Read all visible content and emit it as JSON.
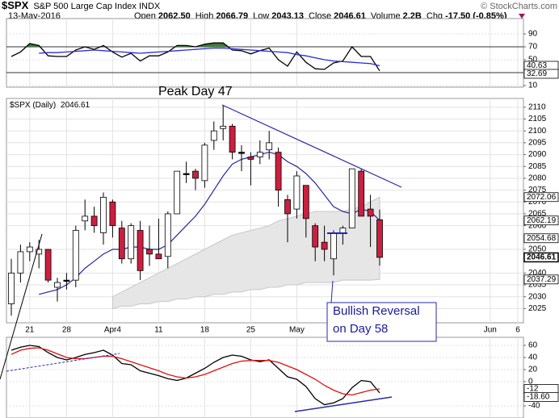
{
  "header": {
    "symbol": "$SPX",
    "name": "S&P 500 Large Cap Index INDX",
    "source": "© StockCharts.com",
    "date": "13-May-2016",
    "stats": [
      {
        "label": "Open",
        "value": "2062.50"
      },
      {
        "label": "High",
        "value": "2066.79"
      },
      {
        "label": "Low",
        "value": "2043.13"
      },
      {
        "label": "Close",
        "value": "2046.61"
      },
      {
        "label": "Volume",
        "value": "2.2B"
      },
      {
        "label": "Chg",
        "value": "-17.50 (-0.85%)"
      }
    ]
  },
  "chart_data": [
    {
      "type": "candlestick",
      "title": "$SPX (Daily)",
      "categories": [
        null,
        null,
        "21",
        null,
        null,
        null,
        "28",
        null,
        null,
        null,
        null,
        "Apr4",
        null,
        null,
        null,
        null,
        "11",
        null,
        null,
        null,
        null,
        "18",
        null,
        null,
        null,
        null,
        "25",
        null,
        null,
        null,
        null,
        "May",
        null,
        null,
        null,
        null,
        null,
        null,
        null,
        null,
        null,
        null,
        null,
        null,
        null,
        null,
        null,
        null,
        null,
        null,
        null,
        null,
        "Jun",
        null,
        null,
        "6"
      ],
      "open": [
        2027,
        2040,
        2049,
        2048,
        2050,
        2034,
        2037,
        2037,
        2062,
        2064,
        2057,
        2070,
        2059,
        2046,
        2058,
        2050,
        2048,
        2047,
        2065,
        2082,
        2083,
        2079,
        2096,
        2101,
        2102,
        2091,
        2089,
        2089,
        2092,
        2091,
        2071,
        2067,
        2077,
        2060,
        2053,
        2046,
        2057,
        2059,
        2083,
        2067,
        2062.5,
        null,
        null,
        null,
        null,
        null,
        null,
        null,
        null,
        null,
        null,
        null,
        null,
        null,
        null,
        null
      ],
      "high": [
        2046,
        2052,
        2053,
        2054,
        2050,
        2038,
        2040,
        2060,
        2071,
        2068,
        2074,
        2071,
        2062,
        2061,
        2062,
        2060,
        2063,
        2066,
        2083,
        2087,
        2084,
        2095,
        2104,
        2111,
        2103,
        2094,
        2091,
        2096,
        2100,
        2093,
        2073,
        2083,
        2077,
        2061,
        2060,
        2058,
        2060,
        2084,
        2084,
        2073,
        2066.79,
        null,
        null,
        null,
        null,
        null,
        null,
        null,
        null,
        null,
        null,
        null,
        null,
        null,
        null,
        null
      ],
      "low": [
        2022,
        2036,
        2045,
        2042,
        2036,
        2028,
        2033,
        2034,
        2058,
        2057,
        2052,
        2055,
        2044,
        2044,
        2037,
        2043,
        2046,
        2042,
        2065,
        2078,
        2075,
        2076,
        2092,
        2096,
        2088,
        2083,
        2077,
        2086,
        2088,
        2068,
        2053,
        2063,
        2055,
        2045,
        2045,
        2039,
        2052,
        2059,
        2064,
        2051,
        2043.13,
        null,
        null,
        null,
        null,
        null,
        null,
        null,
        null,
        null,
        null,
        null,
        null,
        null,
        null,
        null
      ],
      "close": [
        2040,
        2049,
        2051,
        2050,
        2037,
        2036,
        2037,
        2058,
        2064,
        2060,
        2072,
        2060,
        2046,
        2060,
        2041,
        2048,
        2046,
        2065,
        2083,
        2082,
        2080,
        2094,
        2100,
        2102,
        2091,
        2091,
        2088,
        2091,
        2095,
        2075,
        2065,
        2081,
        2063,
        2051,
        2050,
        2057,
        2059,
        2084,
        2064,
        2064,
        2046.61,
        null,
        null,
        null,
        null,
        null,
        null,
        null,
        null,
        null,
        null,
        null,
        null,
        null,
        null,
        null
      ],
      "up_color": "#ffffff",
      "down_color": "#cc1f3f",
      "ma": {
        "color": "#27279c",
        "values": [
          null,
          null,
          null,
          2031,
          2032,
          2033,
          2035,
          2038,
          2042,
          2045,
          2048,
          2050,
          2050,
          2051,
          2051,
          2050,
          2050,
          2052,
          2056,
          2060,
          2064,
          2069,
          2075,
          2081,
          2086,
          2088,
          2089,
          2090,
          2091,
          2090,
          2087,
          2085,
          2082,
          2078,
          2073,
          2068,
          2066,
          2065,
          2067,
          2066,
          2062.19,
          null,
          null,
          null,
          null,
          null,
          null,
          null,
          null,
          null,
          null,
          null,
          null,
          null,
          null,
          null
        ]
      },
      "band": {
        "color": "#e6e6e6",
        "upper": [
          null,
          null,
          null,
          null,
          null,
          null,
          null,
          null,
          null,
          null,
          null,
          2030,
          2032,
          2034,
          2036,
          2038,
          2040,
          2042,
          2044,
          2046,
          2048,
          2050,
          2052,
          2054,
          2056,
          2057,
          2058,
          2059,
          2060,
          2062,
          2063,
          2064,
          2065,
          2066,
          2066,
          2066,
          2066,
          2067,
          2068,
          2070,
          2072.06,
          null,
          null,
          null,
          null,
          null,
          null,
          null,
          null,
          null,
          null,
          null,
          null,
          null,
          null,
          null
        ],
        "lower": [
          null,
          null,
          null,
          null,
          null,
          null,
          null,
          null,
          null,
          null,
          null,
          2025,
          2026,
          2026,
          2027,
          2027,
          2028,
          2028,
          2029,
          2029,
          2030,
          2030,
          2031,
          2031,
          2032,
          2032,
          2033,
          2033,
          2034,
          2034,
          2035,
          2035,
          2036,
          2036,
          2036,
          2036,
          2037,
          2037,
          2037,
          2037,
          2037.29,
          null,
          null,
          null,
          null,
          null,
          null,
          null,
          null,
          null,
          null,
          null,
          null,
          null,
          null,
          null
        ]
      },
      "price_labels": [
        2054.68
      ],
      "ylim": [
        2019,
        2113.7
      ],
      "yticks": [
        2025,
        2030,
        2035,
        2040,
        2050,
        2060,
        2065,
        2070,
        2075,
        2080,
        2085,
        2090,
        2095,
        2100,
        2105,
        2110
      ],
      "grid": true,
      "annotations": [
        "Peak Day 47",
        "Bullish Reversal",
        "on Day 58"
      ]
    },
    {
      "type": "line",
      "ylim": [
        7.5,
        113.75
      ],
      "yticks": [
        10,
        50,
        70,
        90
      ],
      "hlines": [
        70,
        30
      ],
      "overbought_color": "#3f7a3f",
      "grid": true,
      "series": [
        {
          "color": "#000000",
          "values": [
            55,
            62,
            75,
            72,
            56,
            55,
            55,
            65,
            70,
            66,
            72,
            62,
            54,
            60,
            48,
            56,
            56,
            62,
            72,
            72,
            70,
            74,
            76,
            76,
            65,
            64,
            59,
            64,
            68,
            50,
            40,
            62,
            46,
            36,
            35,
            45,
            48,
            70,
            55,
            55,
            32.69
          ]
        },
        {
          "color": "#2b2bd6",
          "values": [
            null,
            null,
            null,
            60,
            61,
            61,
            62,
            63,
            64,
            65,
            64,
            63,
            62,
            61,
            60,
            61,
            62,
            63,
            64,
            65,
            66,
            67,
            68,
            68,
            67,
            66,
            65,
            64,
            63,
            62,
            61,
            58,
            56,
            53,
            50,
            48,
            47,
            46,
            45,
            44,
            40.63
          ]
        }
      ]
    },
    {
      "type": "line",
      "ylim": [
        -60,
        73.3
      ],
      "yticks": [
        -40,
        0,
        20,
        40,
        60
      ],
      "grid": true,
      "series": [
        {
          "color": "#000000",
          "values": [
            52,
            57,
            60,
            58,
            48,
            40,
            36,
            40,
            45,
            48,
            52,
            44,
            30,
            28,
            18,
            14,
            10,
            5,
            2,
            6,
            14,
            22,
            32,
            40,
            44,
            42,
            36,
            33,
            36,
            22,
            8,
            4,
            -8,
            -28,
            -38,
            -35,
            -28,
            -10,
            2,
            0,
            -18.6
          ],
          "value_labels": [
            null,
            null,
            null,
            null,
            null,
            null,
            null,
            null,
            null,
            null,
            null,
            null,
            null,
            null,
            null,
            null,
            null,
            null,
            null,
            null,
            null,
            null,
            null,
            null,
            null,
            null,
            null,
            null,
            null,
            null,
            null,
            null,
            null,
            null,
            null,
            null,
            null,
            null,
            null,
            null,
            "-18.60"
          ]
        },
        {
          "color": "#dd1111",
          "values": [
            45,
            52,
            55,
            56,
            52,
            46,
            40,
            38,
            38,
            40,
            42,
            42,
            38,
            33,
            28,
            23,
            18,
            12,
            8,
            6,
            8,
            12,
            18,
            24,
            30,
            34,
            35,
            35,
            35,
            32,
            26,
            20,
            12,
            4,
            -6,
            -14,
            -20,
            -22,
            -18,
            -14,
            -12
          ]
        }
      ]
    }
  ]
}
